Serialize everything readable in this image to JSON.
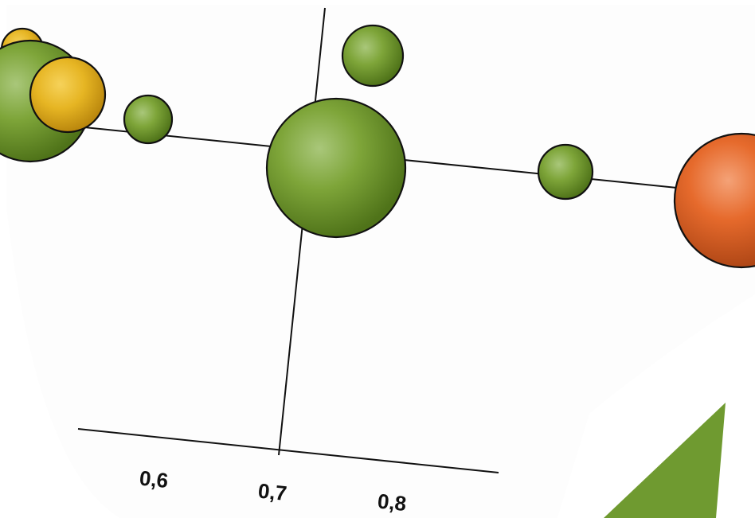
{
  "chart_data": {
    "type": "scatter",
    "variant": "bubble",
    "title": "",
    "xlabel": "",
    "ylabel": "",
    "x_tick_labels": [
      "0,6",
      "0,7",
      "0,8"
    ],
    "x_ticks": [
      0.6,
      0.7,
      0.8
    ],
    "reference_lines": {
      "x": 0.7
    },
    "legend": "none",
    "grid": false,
    "colors": {
      "green": "#6f9a2c",
      "yellow": "#e2b21d",
      "orange": "#e5652a",
      "outline": "#111111",
      "background": "#fdfdfd",
      "accent_triangle": "#6f9a30"
    },
    "bubbles": [
      {
        "x": 0.55,
        "color": "yellow",
        "size": 40
      },
      {
        "x": 0.555,
        "color": "green",
        "size": 100
      },
      {
        "x": 0.56,
        "color": "yellow",
        "size": 50
      },
      {
        "x": 0.63,
        "color": "green",
        "size": 38
      },
      {
        "x": 0.73,
        "color": "green",
        "size": 45
      },
      {
        "x": 0.73,
        "color": "green",
        "size": 110
      },
      {
        "x": 0.94,
        "color": "green",
        "size": 42
      },
      {
        "x": 1.05,
        "color": "orange",
        "size": 98
      }
    ]
  }
}
